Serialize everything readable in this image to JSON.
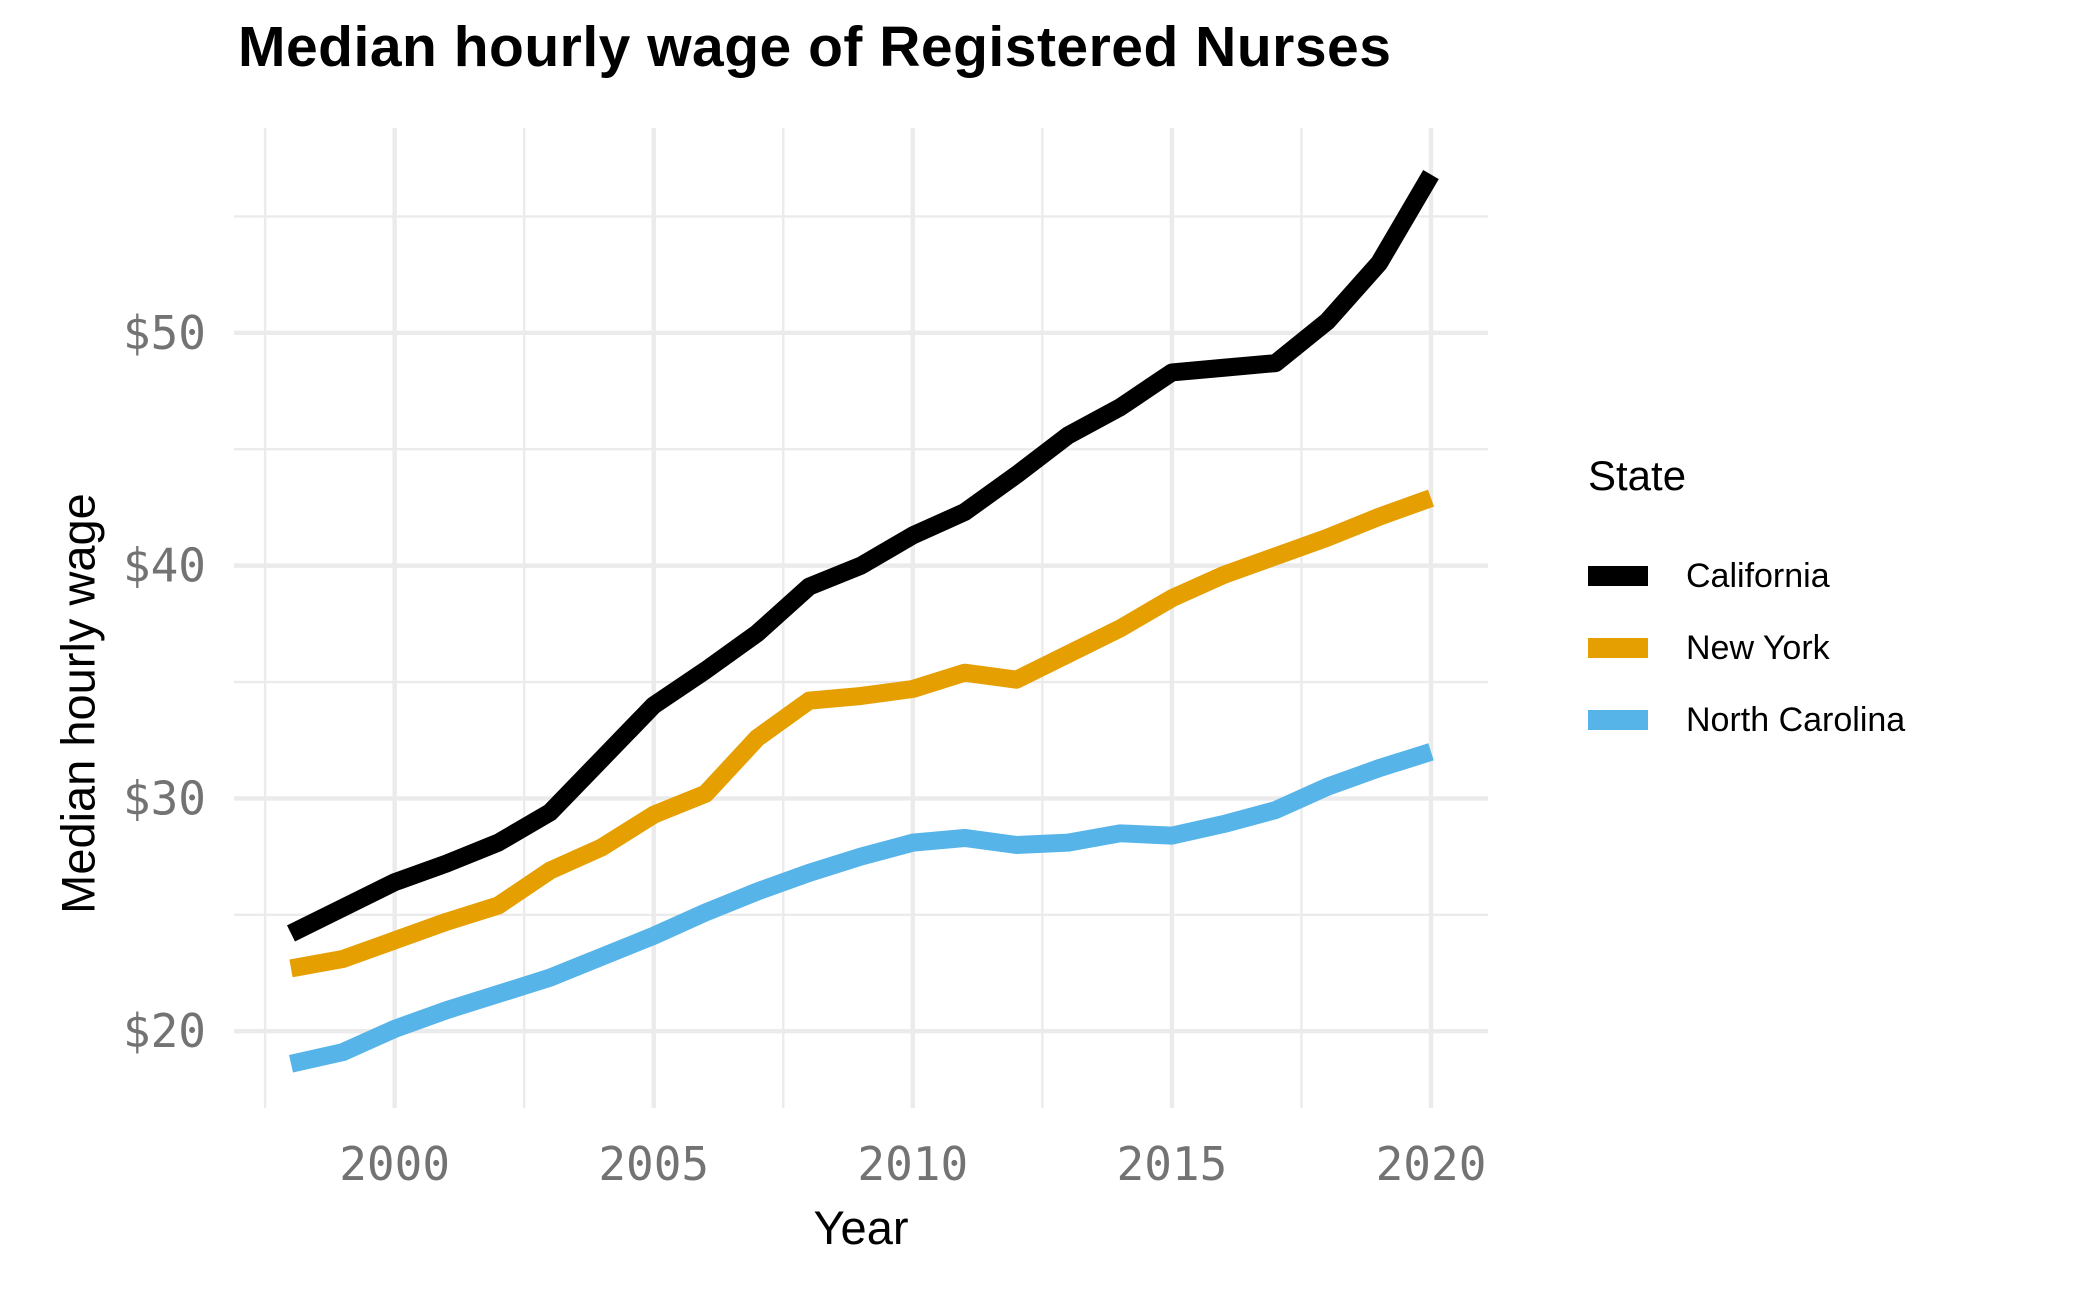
{
  "page": {
    "background": "#ffffff"
  },
  "chart": {
    "title": "Median hourly wage of Registered Nurses",
    "x_axis_title": "Year",
    "y_axis_title": "Median hourly wage"
  },
  "legend": {
    "title": "State",
    "items": [
      {
        "label": "California",
        "color": "#000000"
      },
      {
        "label": "New York",
        "color": "#E69F00"
      },
      {
        "label": "North Carolina",
        "color": "#56B4E9"
      }
    ]
  },
  "style_colors": {
    "gridline": "#EBEBEB",
    "tick_label": "#737373",
    "text": "#000000",
    "background": "#FFFFFF"
  },
  "chart_data": {
    "type": "line",
    "title": "Median hourly wage of Registered Nurses",
    "xlabel": "Year",
    "ylabel": "Median hourly wage",
    "x": [
      1998,
      1999,
      2000,
      2001,
      2002,
      2003,
      2004,
      2005,
      2006,
      2007,
      2008,
      2009,
      2010,
      2011,
      2012,
      2013,
      2014,
      2015,
      2016,
      2017,
      2018,
      2019,
      2020
    ],
    "series": [
      {
        "name": "California",
        "color": "#000000",
        "values": [
          24.2,
          25.3,
          26.4,
          27.2,
          28.1,
          29.4,
          31.7,
          34.0,
          35.5,
          37.1,
          39.1,
          40.0,
          41.3,
          42.3,
          43.9,
          45.6,
          46.8,
          48.3,
          48.5,
          48.7,
          50.5,
          53.0,
          56.8
        ]
      },
      {
        "name": "New York",
        "color": "#E69F00",
        "values": [
          22.7,
          23.1,
          23.9,
          24.7,
          25.4,
          26.9,
          27.9,
          29.3,
          30.2,
          32.6,
          34.2,
          34.4,
          34.7,
          35.4,
          35.1,
          36.2,
          37.3,
          38.6,
          39.6,
          40.4,
          41.2,
          42.1,
          42.9
        ]
      },
      {
        "name": "North Carolina",
        "color": "#56B4E9",
        "values": [
          18.6,
          19.1,
          20.1,
          20.9,
          21.6,
          22.3,
          23.2,
          24.1,
          25.1,
          26.0,
          26.8,
          27.5,
          28.1,
          28.3,
          28.0,
          28.1,
          28.5,
          28.4,
          28.9,
          29.5,
          30.5,
          31.3,
          32.0
        ]
      }
    ],
    "x_ticks": [
      {
        "value": 2000,
        "label": "2000"
      },
      {
        "value": 2005,
        "label": "2005"
      },
      {
        "value": 2010,
        "label": "2010"
      },
      {
        "value": 2015,
        "label": "2015"
      },
      {
        "value": 2020,
        "label": "2020"
      }
    ],
    "y_ticks": [
      {
        "value": 20,
        "label": "$20"
      },
      {
        "value": 30,
        "label": "$30"
      },
      {
        "value": 40,
        "label": "$40"
      },
      {
        "value": 50,
        "label": "$50"
      }
    ],
    "x_minor_gridlines": [
      1997.5,
      2002.5,
      2007.5,
      2012.5,
      2017.5
    ],
    "y_minor_gridlines": [
      25,
      35,
      45,
      55
    ],
    "xlim": [
      1996.9,
      2021.1
    ],
    "ylim": [
      16.7,
      58.8
    ],
    "grid": "on",
    "legend_position": "right",
    "legend_title": "State"
  }
}
